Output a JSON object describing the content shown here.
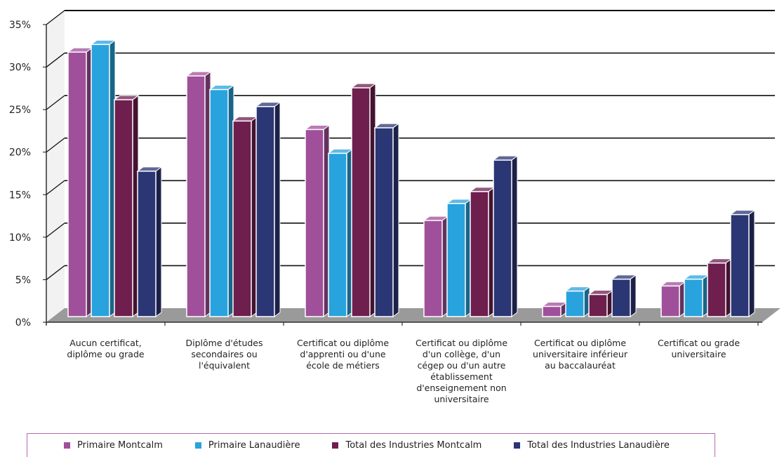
{
  "chart_data": {
    "type": "bar",
    "y_tick_labels": [
      "0%",
      "5%",
      "10%",
      "15%",
      "20%",
      "25%",
      "30%",
      "35%"
    ],
    "ylim": [
      0,
      35
    ],
    "ytick_step": 5,
    "grid": true,
    "legend_position": "bottom",
    "categories": [
      "Aucun certificat, diplôme ou grade",
      "Diplôme d'études secondaires ou l'équivalent",
      "Certificat ou diplôme d'apprenti ou d'une école de métiers",
      "Certificat ou diplôme d'un collège, d'un cégep ou d'un autre établissement d'enseignement non universitaire",
      "Certificat ou diplôme universitaire inférieur au baccalauréat",
      "Certificat ou grade universitaire"
    ],
    "series": [
      {
        "name": "Primaire Montcalm",
        "color": "#a0509a",
        "values": [
          31.1,
          28.3,
          22.0,
          11.3,
          1.2,
          3.6
        ]
      },
      {
        "name": "Primaire Lanaudière",
        "color": "#29a3dd",
        "values": [
          32.0,
          26.7,
          19.2,
          13.3,
          3.0,
          4.4
        ]
      },
      {
        "name": "Total des Industries Montcalm",
        "color": "#6e1f4e",
        "values": [
          25.5,
          23.0,
          26.9,
          14.7,
          2.6,
          6.3
        ]
      },
      {
        "name": "Total des Industries Lanaudière",
        "color": "#2b3674",
        "values": [
          17.1,
          24.7,
          22.2,
          18.4,
          4.4,
          12.0
        ]
      }
    ]
  }
}
